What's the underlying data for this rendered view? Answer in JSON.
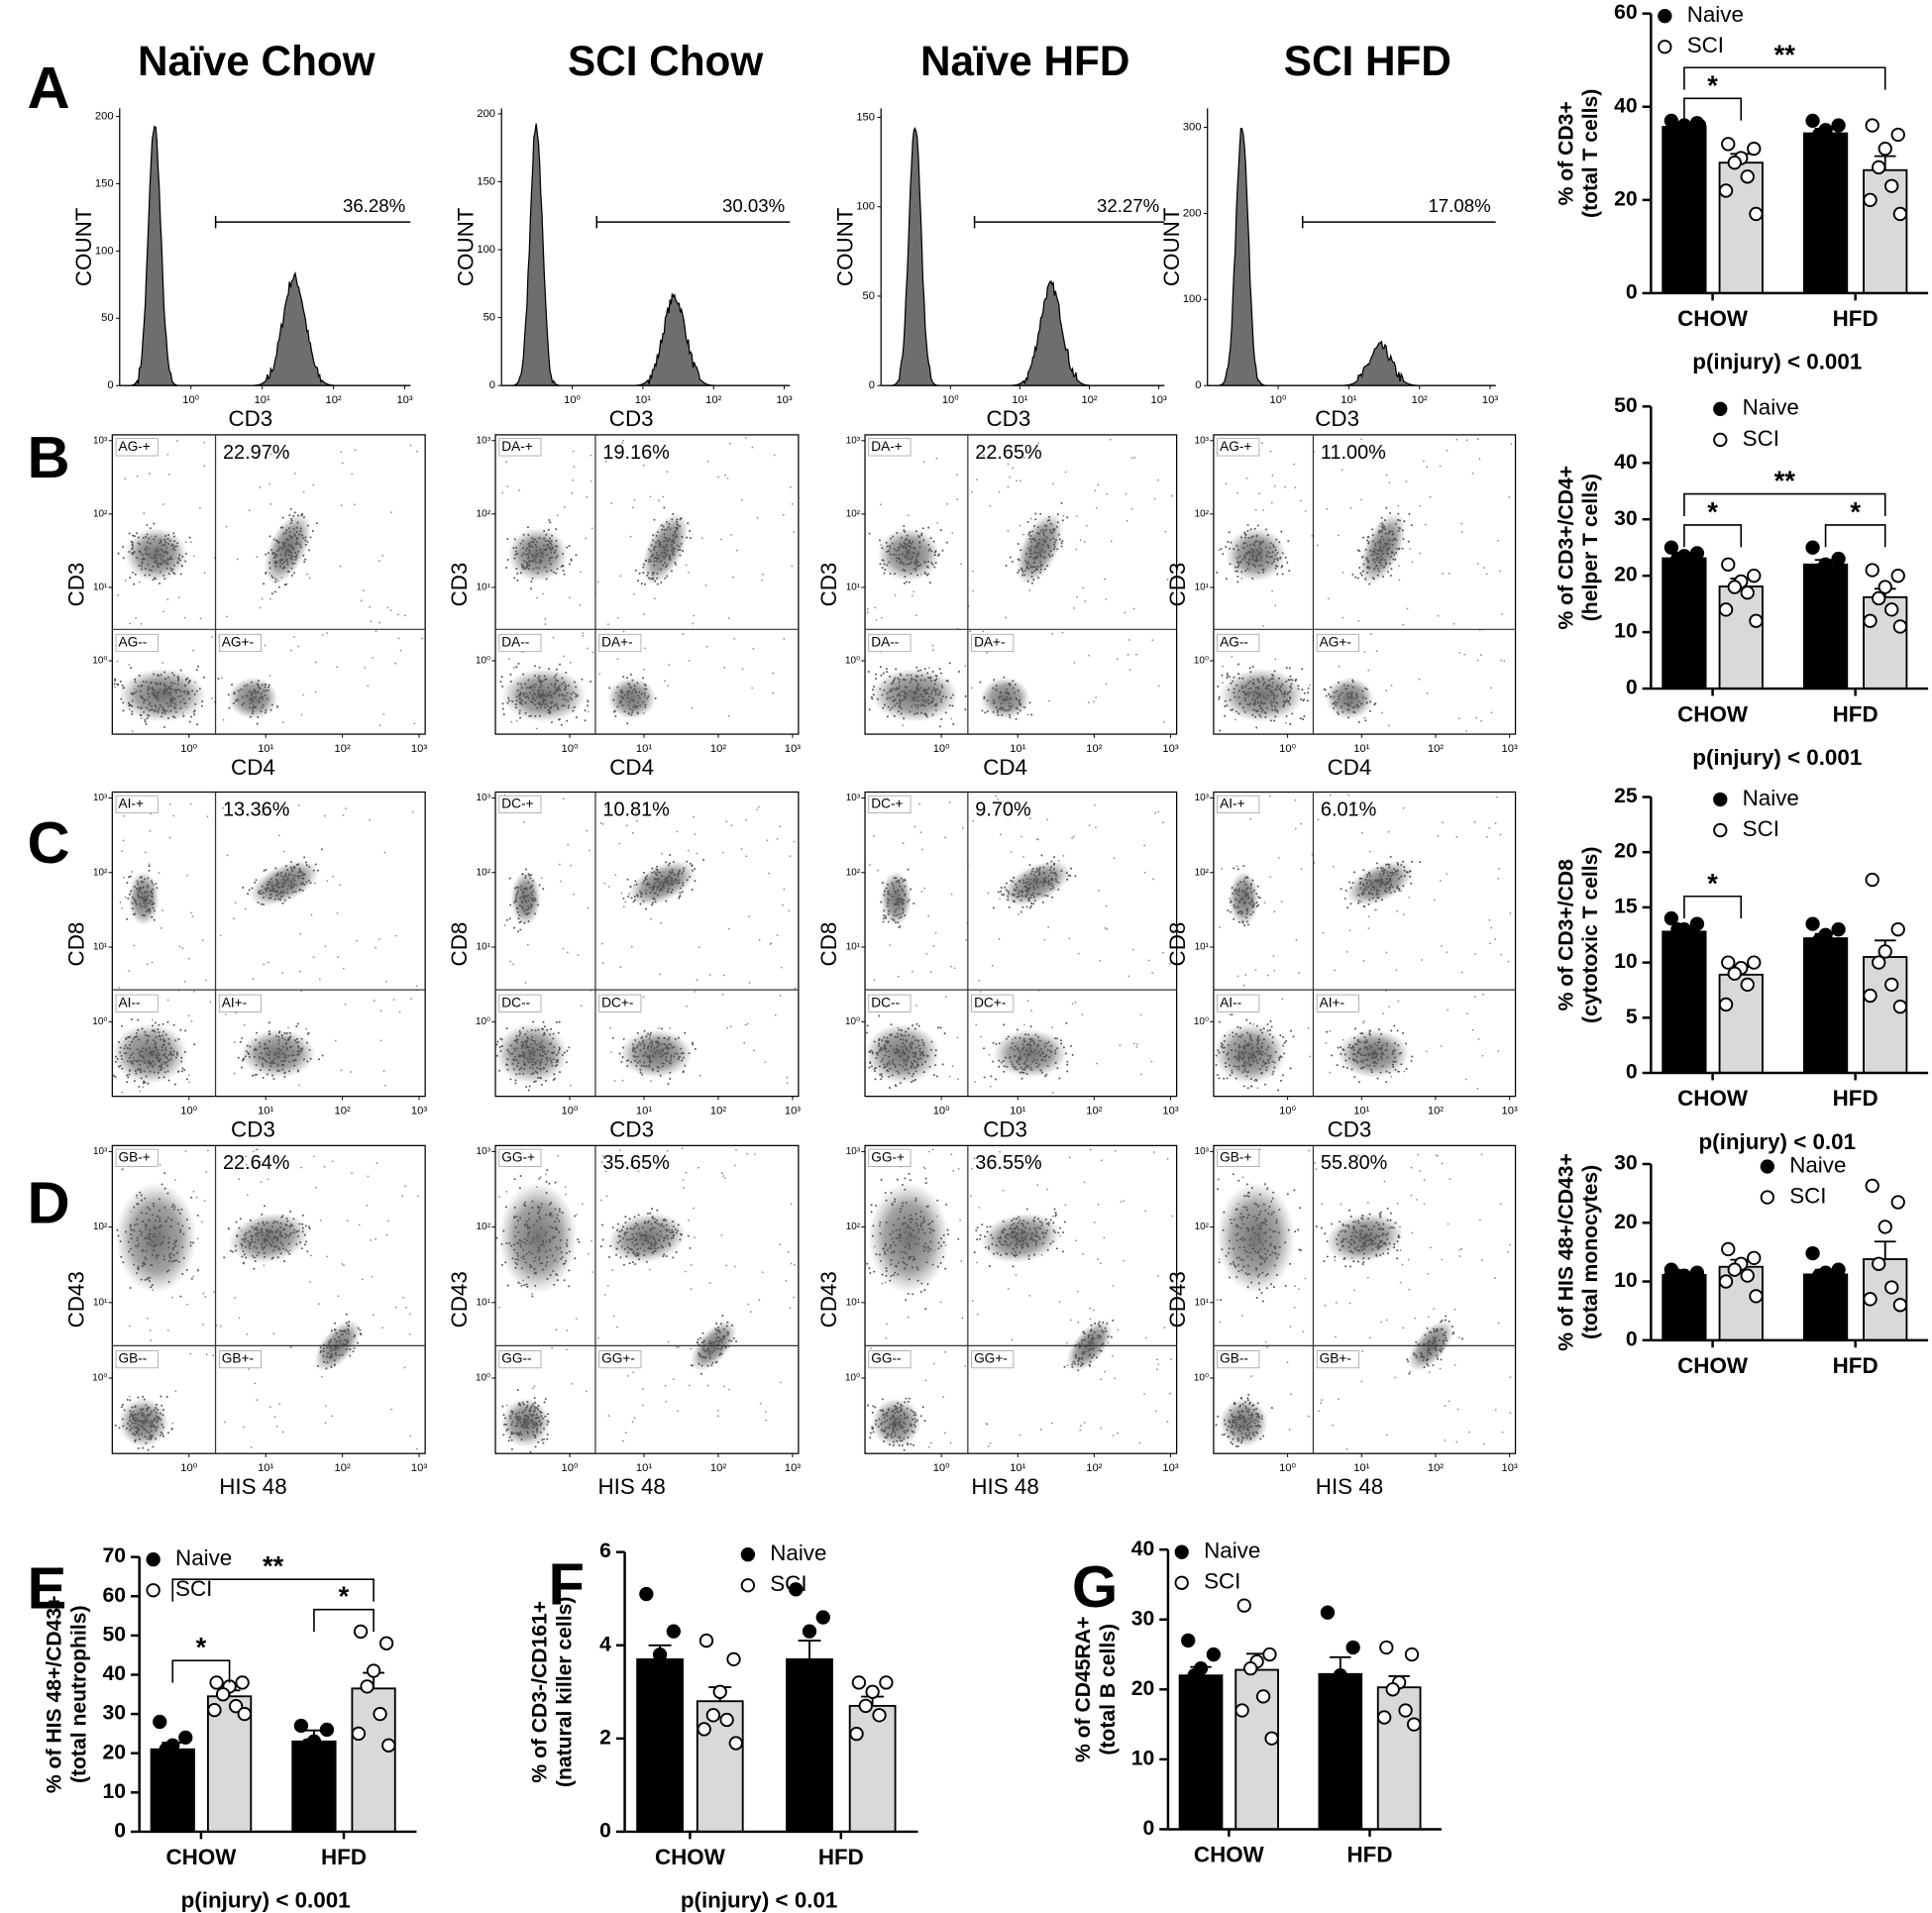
{
  "panel_letters": [
    "A",
    "B",
    "C",
    "D",
    "E",
    "F",
    "G"
  ],
  "column_titles": [
    "Naïve Chow",
    "SCI Chow",
    "Naïve HFD",
    "SCI HFD"
  ],
  "flow_axis": {
    "log": true,
    "lim": [
      0.1,
      1200
    ],
    "ticks": [
      {
        "value": 1,
        "label": "10⁰"
      },
      {
        "value": 10,
        "label": "10¹"
      },
      {
        "value": 100,
        "label": "10²"
      },
      {
        "value": 1000,
        "label": "10³"
      }
    ]
  },
  "flow_rows": [
    {
      "type": "histogram",
      "x_label": "CD3",
      "y_label": "COUNT",
      "plots": [
        {
          "gate": "36.28%",
          "ylim": [
            0,
            206
          ],
          "yticks": [
            0,
            50,
            100,
            150,
            200
          ]
        },
        {
          "gate": "30.03%",
          "ylim": [
            0,
            204
          ],
          "yticks": [
            0,
            50,
            100,
            150,
            200
          ]
        },
        {
          "gate": "32.27%",
          "ylim": [
            0,
            155
          ],
          "yticks": [
            0,
            50,
            100,
            150
          ]
        },
        {
          "gate": "17.08%",
          "ylim": [
            0,
            322
          ],
          "yticks": [
            0,
            100,
            200,
            300
          ]
        }
      ]
    },
    {
      "type": "dot",
      "x_label": "CD4",
      "y_label": "CD3",
      "plots": [
        {
          "gate": "22.97%",
          "quadrants": [
            "AG-+",
            "AG--",
            "AG+-"
          ]
        },
        {
          "gate": "19.16%",
          "quadrants": [
            "DA-+",
            "DA--",
            "DA+-"
          ]
        },
        {
          "gate": "22.65%",
          "quadrants": [
            "DA-+",
            "DA--",
            "DA+-"
          ]
        },
        {
          "gate": "11.00%",
          "quadrants": [
            "AG-+",
            "AG--",
            "AG+-"
          ]
        }
      ]
    },
    {
      "type": "dot",
      "x_label": "CD3",
      "y_label": "CD8",
      "plots": [
        {
          "gate": "13.36%",
          "quadrants": [
            "AI-+",
            "AI--",
            "AI+-"
          ]
        },
        {
          "gate": "10.81%",
          "quadrants": [
            "DC-+",
            "DC--",
            "DC+-"
          ]
        },
        {
          "gate": "9.70%",
          "quadrants": [
            "DC-+",
            "DC--",
            "DC+-"
          ]
        },
        {
          "gate": "6.01%",
          "quadrants": [
            "AI-+",
            "AI--",
            "AI+-"
          ]
        }
      ]
    },
    {
      "type": "dot",
      "x_label": "HIS 48",
      "y_label": "CD43",
      "plots": [
        {
          "gate": "22.64%",
          "quadrants": [
            "GB-+",
            "GB--",
            "GB+-"
          ]
        },
        {
          "gate": "35.65%",
          "quadrants": [
            "GG-+",
            "GG--",
            "GG+-"
          ]
        },
        {
          "gate": "36.55%",
          "quadrants": [
            "GG-+",
            "GG--",
            "GG+-"
          ]
        },
        {
          "gate": "55.80%",
          "quadrants": [
            "GB-+",
            "GB--",
            "GB+-"
          ]
        }
      ]
    }
  ],
  "chart_data": [
    {
      "type": "bar",
      "ylabel": [
        "% of CD3+",
        "(total T cells)"
      ],
      "categories": [
        "CHOW",
        "HFD"
      ],
      "ylim": [
        0,
        60
      ],
      "yticks": [
        0,
        20,
        40,
        60
      ],
      "legend": "upper left",
      "series": [
        {
          "name": "Naive",
          "color": "#000000",
          "marker": "filled",
          "values": [
            35.7,
            34.3
          ],
          "errors": [
            0.9,
            1.0
          ],
          "points": [
            [
              37,
              36.5,
              36,
              35,
              34.5,
              34,
              36
            ],
            [
              37,
              36,
              35,
              34,
              33,
              32
            ]
          ]
        },
        {
          "name": "SCI",
          "color": "#d9d9d9",
          "marker": "open",
          "values": [
            28,
            26.4
          ],
          "errors": [
            1.9,
            3.0
          ],
          "points": [
            [
              32,
              31,
              29,
              28,
              25,
              22,
              17
            ],
            [
              36,
              34,
              31,
              27,
              23,
              20,
              17
            ]
          ]
        }
      ],
      "annotations": [
        {
          "text": "*",
          "bars": [
            0,
            1
          ]
        },
        {
          "text": "**",
          "bars": [
            0,
            3
          ]
        }
      ],
      "footer": "p(injury) < 0.001"
    },
    {
      "type": "bar",
      "ylabel": [
        "% of CD3+/CD4+",
        "(helper T cells)"
      ],
      "categories": [
        "CHOW",
        "HFD"
      ],
      "ylim": [
        0,
        50
      ],
      "yticks": [
        0,
        10,
        20,
        30,
        40,
        50
      ],
      "legend": "upper center",
      "series": [
        {
          "name": "Naive",
          "color": "#000000",
          "marker": "filled",
          "values": [
            23.1,
            22
          ],
          "errors": [
            0.7,
            0.8
          ],
          "points": [
            [
              25,
              24,
              23.5,
              23,
              22,
              21,
              21
            ],
            [
              25,
              23,
              22,
              21,
              21,
              20.5
            ]
          ]
        },
        {
          "name": "SCI",
          "color": "#d9d9d9",
          "marker": "open",
          "values": [
            18.1,
            16.2
          ],
          "errors": [
            1.4,
            1.5
          ],
          "points": [
            [
              22,
              20,
              19,
              18,
              17,
              14,
              12
            ],
            [
              21,
              20,
              18,
              16,
              14,
              12,
              11
            ]
          ]
        }
      ],
      "annotations": [
        {
          "text": "*",
          "bars": [
            0,
            1
          ]
        },
        {
          "text": "*",
          "bars": [
            2,
            3
          ]
        },
        {
          "text": "**",
          "bars": [
            0,
            3
          ]
        }
      ],
      "footer": "p(injury) < 0.001"
    },
    {
      "type": "bar",
      "ylabel": [
        "% of CD3+/CD8",
        "(cytotoxic T cells)"
      ],
      "categories": [
        "CHOW",
        "HFD"
      ],
      "ylim": [
        0,
        25
      ],
      "yticks": [
        0,
        5,
        10,
        15,
        20,
        25
      ],
      "legend": "upper center",
      "series": [
        {
          "name": "Naive",
          "color": "#000000",
          "marker": "filled",
          "values": [
            12.8,
            12.2
          ],
          "errors": [
            0.5,
            0.4
          ],
          "points": [
            [
              14,
              13.5,
              13,
              13,
              12.5,
              12,
              10.5
            ],
            [
              13.5,
              13,
              12.5,
              12,
              11.5,
              11
            ]
          ]
        },
        {
          "name": "SCI",
          "color": "#d9d9d9",
          "marker": "open",
          "values": [
            8.9,
            10.5
          ],
          "errors": [
            0.7,
            1.5
          ],
          "points": [
            [
              10,
              10,
              9.5,
              9,
              8,
              6.2
            ],
            [
              17.5,
              13,
              11,
              10,
              8,
              7,
              6
            ]
          ]
        }
      ],
      "annotations": [
        {
          "text": "*",
          "bars": [
            0,
            1
          ]
        }
      ],
      "footer": "p(injury) < 0.01"
    },
    {
      "type": "bar",
      "ylabel": [
        "% of HIS 48+/CD43+",
        "(total monocytes)"
      ],
      "categories": [
        "CHOW",
        "HFD"
      ],
      "ylim": [
        0,
        30
      ],
      "yticks": [
        0,
        10,
        20,
        30
      ],
      "legend": "upper right",
      "series": [
        {
          "name": "Naive",
          "color": "#000000",
          "marker": "filled",
          "values": [
            11.1,
            11.2
          ],
          "errors": [
            0.3,
            0.8
          ],
          "points": [
            [
              12,
              11.5,
              11,
              11,
              10.5,
              10.5,
              10
            ],
            [
              14.8,
              12,
              11.5,
              11,
              10,
              9.5
            ]
          ]
        },
        {
          "name": "SCI",
          "color": "#d9d9d9",
          "marker": "open",
          "values": [
            12.5,
            13.8
          ],
          "errors": [
            1.2,
            3.0
          ],
          "points": [
            [
              15.5,
              14,
              13,
              12,
              11,
              10,
              7.5
            ],
            [
              26.3,
              23.5,
              19.3,
              13,
              9,
              7,
              6
            ]
          ]
        }
      ],
      "annotations": []
    },
    {
      "type": "bar",
      "ylabel": [
        "% of HIS 48+/CD43+",
        "(total neutrophils)"
      ],
      "categories": [
        "CHOW",
        "HFD"
      ],
      "ylim": [
        0,
        70
      ],
      "yticks": [
        0,
        10,
        20,
        30,
        40,
        50,
        60,
        70
      ],
      "legend": "upper left",
      "series": [
        {
          "name": "Naive",
          "color": "#000000",
          "marker": "filled",
          "values": [
            21,
            23
          ],
          "errors": [
            1.7,
            2.8
          ],
          "points": [
            [
              28,
              24,
              22,
              21,
              19,
              16,
              15
            ],
            [
              27,
              26,
              23,
              22,
              17,
              13
            ]
          ]
        },
        {
          "name": "SCI",
          "color": "#d9d9d9",
          "marker": "open",
          "values": [
            34.5,
            36.5
          ],
          "errors": [
            1.5,
            4.0
          ],
          "points": [
            [
              38,
              38,
              37,
              35,
              32,
              31,
              30
            ],
            [
              51,
              48,
              41,
              37,
              30,
              25,
              22
            ]
          ]
        }
      ],
      "annotations": [
        {
          "text": "*",
          "bars": [
            0,
            1
          ]
        },
        {
          "text": "*",
          "bars": [
            2,
            3
          ]
        },
        {
          "text": "**",
          "bars": [
            0,
            3
          ]
        }
      ],
      "footer": "p(injury) < 0.001"
    },
    {
      "type": "bar",
      "ylabel": [
        "% of CD3-/CD161+",
        "(natural killer cells)"
      ],
      "categories": [
        "CHOW",
        "HFD"
      ],
      "ylim": [
        0,
        6
      ],
      "yticks": [
        0,
        2,
        4,
        6
      ],
      "legend": "upper right",
      "series": [
        {
          "name": "Naive",
          "color": "#000000",
          "marker": "filled",
          "values": [
            3.7,
            3.7
          ],
          "errors": [
            0.3,
            0.4
          ],
          "points": [
            [
              5.1,
              4.3,
              3.8,
              3.5,
              3.2,
              3,
              2.8
            ],
            [
              5.2,
              4.6,
              4.3,
              3.5,
              3,
              2.5,
              2.2
            ]
          ]
        },
        {
          "name": "SCI",
          "color": "#d9d9d9",
          "marker": "open",
          "values": [
            2.8,
            2.7
          ],
          "errors": [
            0.3,
            0.2
          ],
          "points": [
            [
              4.1,
              3.7,
              3,
              2.5,
              2.4,
              2.2,
              1.9
            ],
            [
              3.2,
              3.2,
              3,
              2.7,
              2.5,
              2.1
            ]
          ]
        }
      ],
      "annotations": [],
      "footer": "p(injury) < 0.01"
    },
    {
      "type": "bar",
      "ylabel": [
        "% of CD45RA+",
        "(total B cells)"
      ],
      "categories": [
        "CHOW",
        "HFD"
      ],
      "ylim": [
        0,
        40
      ],
      "yticks": [
        0,
        10,
        20,
        30,
        40
      ],
      "legend": "upper left",
      "series": [
        {
          "name": "Naive",
          "color": "#000000",
          "marker": "filled",
          "values": [
            22,
            22.2
          ],
          "errors": [
            1.2,
            2.4
          ],
          "points": [
            [
              27,
              25,
              23,
              22,
              21,
              20,
              19
            ],
            [
              31,
              26,
              22,
              20,
              18,
              17
            ]
          ]
        },
        {
          "name": "SCI",
          "color": "#d9d9d9",
          "marker": "open",
          "values": [
            22.8,
            20.3
          ],
          "errors": [
            2.3,
            1.6
          ],
          "points": [
            [
              32,
              25,
              24,
              23,
              19,
              17,
              13
            ],
            [
              26,
              25,
              21,
              20,
              17,
              16,
              15
            ]
          ]
        }
      ],
      "annotations": []
    }
  ]
}
